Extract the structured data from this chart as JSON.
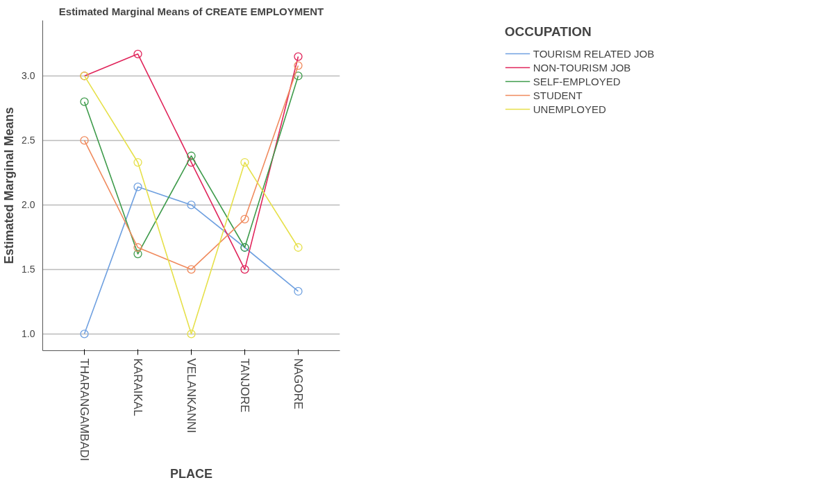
{
  "chart_data": {
    "type": "line",
    "title": "Estimated Marginal Means of CREATE EMPLOYMENT",
    "xlabel": "PLACE",
    "ylabel": "Estimated Marginal Means",
    "legend_title": "OCCUPATION",
    "categories": [
      "THARANGAMBADI",
      "KARAIKAL",
      "VELANKANNI",
      "TANJORE",
      "NAGORE"
    ],
    "series": [
      {
        "name": "TOURISM RELATED JOB",
        "color": "#6fa0e0",
        "values": [
          1.0,
          2.14,
          2.0,
          1.67,
          1.33
        ]
      },
      {
        "name": "NON-TOURISM JOB",
        "color": "#e0245a",
        "values": [
          3.0,
          3.17,
          2.33,
          1.5,
          3.15
        ]
      },
      {
        "name": "SELF-EMPLOYED",
        "color": "#3e9b4b",
        "values": [
          2.8,
          1.62,
          2.38,
          1.67,
          3.0
        ]
      },
      {
        "name": "STUDENT",
        "color": "#f08a5d",
        "values": [
          2.5,
          1.67,
          1.5,
          1.89,
          3.08
        ]
      },
      {
        "name": "UNEMPLOYED",
        "color": "#e6e04a",
        "values": [
          3.0,
          2.33,
          1.0,
          2.33,
          1.67
        ]
      }
    ],
    "ylim": [
      0.87,
      3.43
    ],
    "yticks": [
      {
        "value": 1,
        "label": "1.0"
      },
      {
        "value": 1.5,
        "label": "1.5"
      },
      {
        "value": 2,
        "label": "2.0"
      },
      {
        "value": 2.5,
        "label": "2.5"
      },
      {
        "value": 3,
        "label": "3.0"
      }
    ],
    "grid": "y",
    "legend": "right",
    "marker": "circle",
    "line_style": "solid"
  }
}
